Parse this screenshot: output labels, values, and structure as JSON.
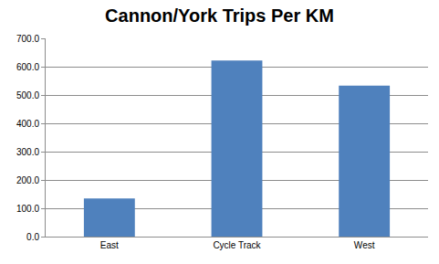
{
  "chart_data": {
    "type": "bar",
    "title": "Cannon/York Trips Per KM",
    "categories": [
      "East",
      "Cycle Track",
      "West"
    ],
    "values": [
      135,
      622,
      533
    ],
    "color": "#4f81bd",
    "ylim": [
      0,
      700
    ],
    "yticks": [
      {
        "value": 0,
        "label": "0.0"
      },
      {
        "value": 100,
        "label": "100.0"
      },
      {
        "value": 200,
        "label": "200.0"
      },
      {
        "value": 300,
        "label": "300.0"
      },
      {
        "value": 400,
        "label": "400.0"
      },
      {
        "value": 500,
        "label": "500.0"
      },
      {
        "value": 600,
        "label": "600.0"
      },
      {
        "value": 700,
        "label": "700.0"
      }
    ],
    "grid": true
  }
}
